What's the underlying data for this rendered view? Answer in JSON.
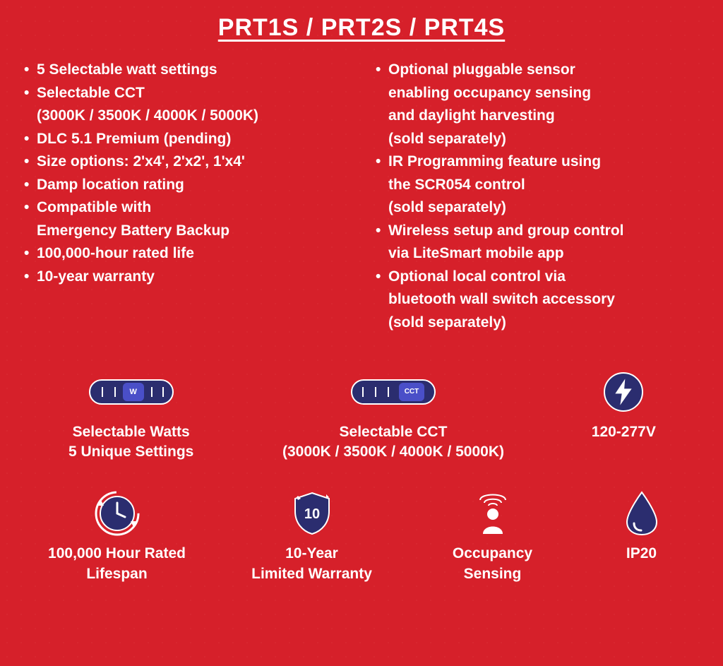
{
  "title": "PRT1S / PRT2S / PRT4S",
  "colors": {
    "background": "#d6202a",
    "text": "#ffffff",
    "icon_dark": "#2b2d6f",
    "icon_accent": "#4a4fc8"
  },
  "left_bullets": [
    "5 Selectable watt settings",
    "Selectable CCT\n(3000K /  3500K / 4000K / 5000K)",
    "DLC 5.1 Premium (pending)",
    "Size options: 2'x4', 2'x2', 1'x4'",
    "Damp location rating",
    "Compatible with\nEmergency Battery Backup",
    "100,000-hour rated life",
    "10-year warranty"
  ],
  "right_bullets": [
    "Optional pluggable sensor\nenabling occupancy sensing\nand daylight harvesting\n(sold separately)",
    "IR Programming feature using\nthe SCR054 control\n(sold separately)",
    "Wireless setup and group control\nvia LiteSmart mobile app",
    "Optional local control via\nbluetooth wall switch accessory\n(sold separately)"
  ],
  "features_row1": [
    {
      "icon": "switch-w",
      "label": "Selectable Watts\n5 Unique Settings"
    },
    {
      "icon": "switch-cct",
      "label": "Selectable CCT\n(3000K / 3500K / 4000K / 5000K)"
    },
    {
      "icon": "bolt",
      "label": "120-277V"
    }
  ],
  "features_row2": [
    {
      "icon": "clock",
      "label": "100,000 Hour Rated\nLifespan"
    },
    {
      "icon": "shield-10",
      "label": "10-Year\nLimited Warranty"
    },
    {
      "icon": "occupancy",
      "label": "Occupancy\nSensing"
    },
    {
      "icon": "droplet",
      "label": "IP20"
    }
  ],
  "typography": {
    "title_fontsize": 34,
    "bullet_fontsize": 21,
    "feature_label_fontsize": 21,
    "font_weight": 700
  }
}
